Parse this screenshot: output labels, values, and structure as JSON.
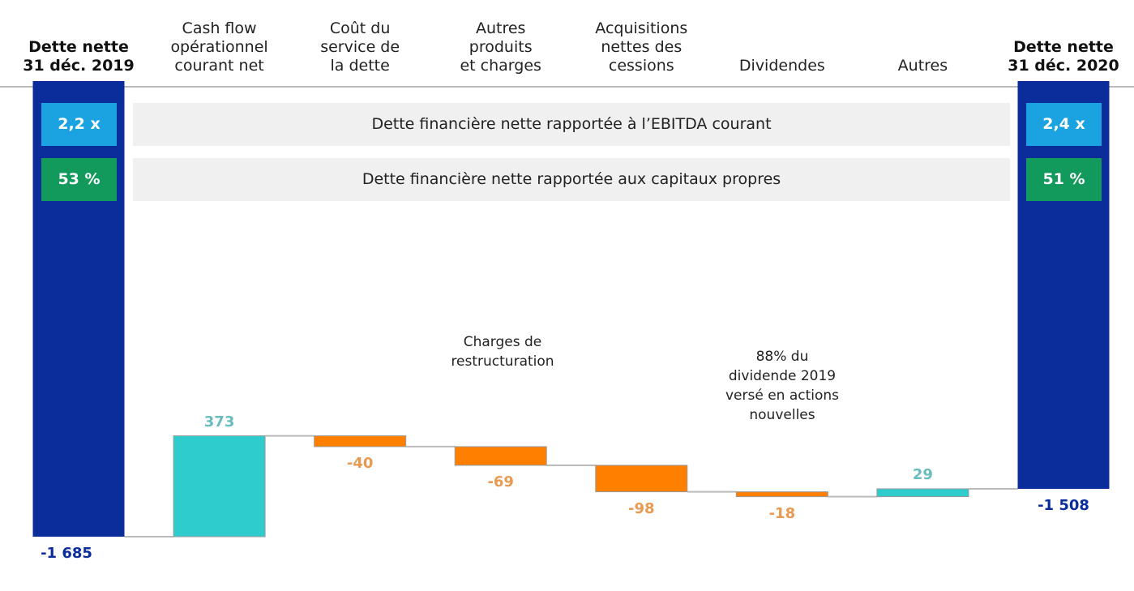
{
  "chart_data": {
    "type": "waterfall",
    "categories": [
      "Dette nette\n31 déc. 2019",
      "Cash flow\nopérationnel\ncourant net",
      "Coût du\nservice de\nla dette",
      "Autres\nproduits\net charges",
      "Acquisitions\nnettes des\ncessions",
      "Dividendes",
      "Autres",
      "Dette nette\n31 déc. 2020"
    ],
    "values": [
      -1685,
      373,
      -40,
      -69,
      -98,
      -18,
      29,
      -1508
    ],
    "value_labels": [
      "-1 685",
      "373",
      "-40",
      "-69",
      "-98",
      "-18",
      "29",
      "-1 508"
    ],
    "colors": {
      "total": "#0b2d9c",
      "increase": "#2ecccc",
      "decrease": "#ff8000"
    },
    "ylim": [
      -1700,
      0
    ],
    "ratios": [
      {
        "label": "Dette financière nette rapportée à l’EBITDA courant",
        "start": "2,2 x",
        "end": "2,4 x",
        "color": "#1aa3e0"
      },
      {
        "label": "Dette financière nette rapportée aux capitaux propres",
        "start": "53 %",
        "end": "51 %",
        "color": "#119a5b"
      }
    ],
    "annotations": [
      "Charges de\nrestructuration",
      "88% du\ndividende 2019\nversé en actions\nnouvelles"
    ]
  }
}
